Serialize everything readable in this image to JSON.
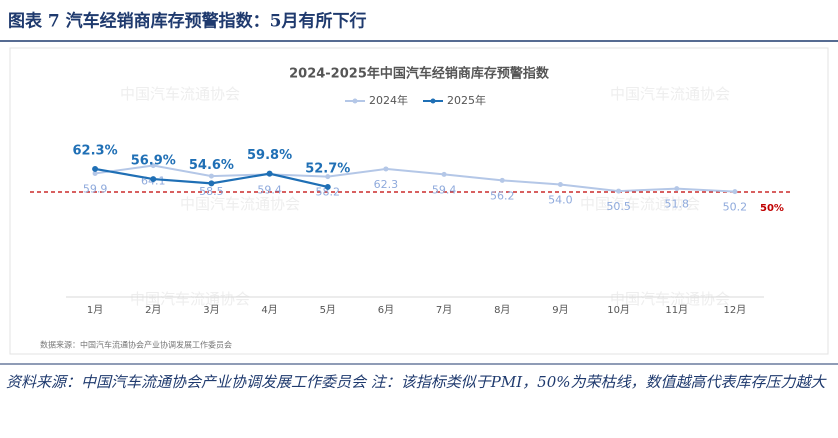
{
  "header": {
    "title": "图表 7   汽车经销商库存预警指数：5月有所下行"
  },
  "chart_data": {
    "type": "line",
    "title": "2024-2025年中国汽车经销商库存预警指数",
    "categories": [
      "1月",
      "2月",
      "3月",
      "4月",
      "5月",
      "6月",
      "7月",
      "8月",
      "9月",
      "10月",
      "11月",
      "12月"
    ],
    "series": [
      {
        "name": "2024年",
        "color": "#b4c7e7",
        "values": [
          59.9,
          64.1,
          58.5,
          59.4,
          58.2,
          62.3,
          59.4,
          56.2,
          54.0,
          50.5,
          51.8,
          50.2
        ],
        "value_labels": [
          "59.9",
          "64.1",
          "58.5",
          "59.4",
          "58.2",
          "62.3",
          "59.4",
          "56.2",
          "54.0",
          "50.5",
          "51.8",
          "50.2"
        ]
      },
      {
        "name": "2025年",
        "color": "#1f6fb5",
        "values": [
          62.3,
          56.9,
          54.6,
          59.8,
          52.7,
          null,
          null,
          null,
          null,
          null,
          null,
          null
        ],
        "value_labels": [
          "62.3%",
          "56.9%",
          "54.6%",
          "59.8%",
          "52.7%",
          null,
          null,
          null,
          null,
          null,
          null,
          null
        ]
      }
    ],
    "ylim": [
      -6,
      100
    ],
    "reference_line": {
      "value": 50,
      "label": "50%",
      "color": "#c00000"
    },
    "watermark": "中国汽车流通协会",
    "source": "数据来源：中国汽车流通协会产业协调发展工作委员会",
    "legend": "top"
  },
  "footer": {
    "note": "资料来源：中国汽车流通协会产业协调发展工作委员会  注：该指标类似于PMI，50%为荣枯线，数值越高代表库存压力越大"
  }
}
